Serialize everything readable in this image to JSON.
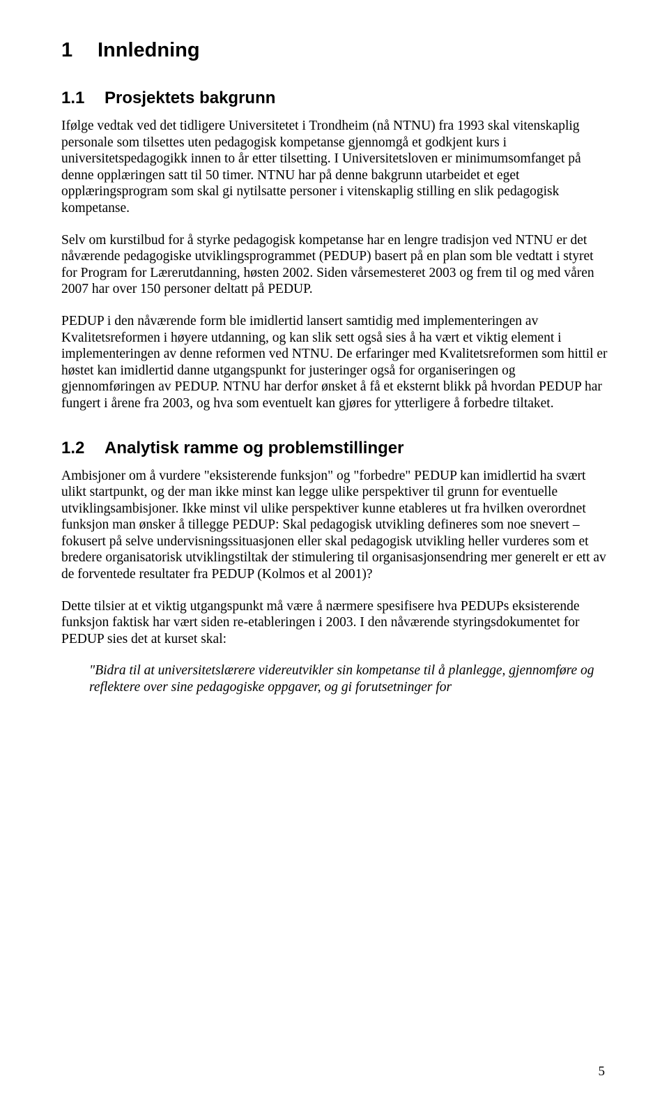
{
  "heading1": {
    "number": "1",
    "text": "Innledning"
  },
  "section_1_1": {
    "number": "1.1",
    "title": "Prosjektets bakgrunn",
    "p1": "Ifølge vedtak ved det tidligere Universitetet i Trondheim (nå NTNU) fra 1993 skal vitenskaplig personale som tilsettes uten pedagogisk kompetanse gjennomgå et godkjent kurs i universitetspedagogikk innen to år etter tilsetting. I Universitetsloven er minimumsomfanget på denne opplæringen satt til 50 timer. NTNU har på denne bakgrunn utarbeidet et eget opplæringsprogram som skal gi nytilsatte personer i vitenskaplig stilling en slik pedagogisk kompetanse.",
    "p2": "Selv om kurstilbud for å styrke pedagogisk kompetanse har en lengre tradisjon ved NTNU er det nåværende pedagogiske utviklingsprogrammet (PEDUP) basert på en plan som ble vedtatt i styret for Program for Lærerutdanning, høsten 2002. Siden vårsemesteret 2003 og frem til og med våren 2007 har over 150 personer deltatt på PEDUP.",
    "p3": "PEDUP i den nåværende form ble imidlertid lansert samtidig med implementeringen av Kvalitetsreformen i høyere utdanning, og kan slik sett også sies å ha vært et viktig element i implementeringen av denne reformen ved NTNU. De erfaringer med Kvalitetsreformen som hittil er høstet kan imidlertid danne utgangspunkt for justeringer også for organiseringen og gjennomføringen av PEDUP. NTNU har derfor ønsket å få et eksternt blikk på hvordan PEDUP har fungert i årene fra 2003, og hva som eventuelt kan gjøres for ytterligere å forbedre tiltaket."
  },
  "section_1_2": {
    "number": "1.2",
    "title": "Analytisk ramme og problemstillinger",
    "p1": "Ambisjoner om å vurdere \"eksisterende funksjon\" og \"forbedre\" PEDUP kan imidlertid ha svært ulikt startpunkt, og der man ikke minst kan legge ulike perspektiver til grunn for eventuelle utviklingsambisjoner. Ikke minst vil ulike perspektiver kunne etableres ut fra hvilken overordnet funksjon man ønsker å tillegge PEDUP: Skal pedagogisk utvikling defineres som noe snevert – fokusert på selve undervisningssituasjonen eller skal pedagogisk utvikling heller vurderes som et bredere organisatorisk utviklingstiltak der stimulering til organisasjonsendring mer generelt er ett av de forventede resultater fra PEDUP (Kolmos et al 2001)?",
    "p2": "Dette tilsier at et viktig utgangspunkt må være å nærmere spesifisere hva PEDUPs eksisterende funksjon faktisk har vært siden re-etableringen i 2003. I den nåværende styringsdokumentet for PEDUP sies det at kurset skal:",
    "quote": "\"Bidra til at universitetslærere videreutvikler sin kompetanse til å planlegge, gjennomføre og reflektere over sine pedagogiske oppgaver, og gi forutsetninger for"
  },
  "page_number": "5"
}
